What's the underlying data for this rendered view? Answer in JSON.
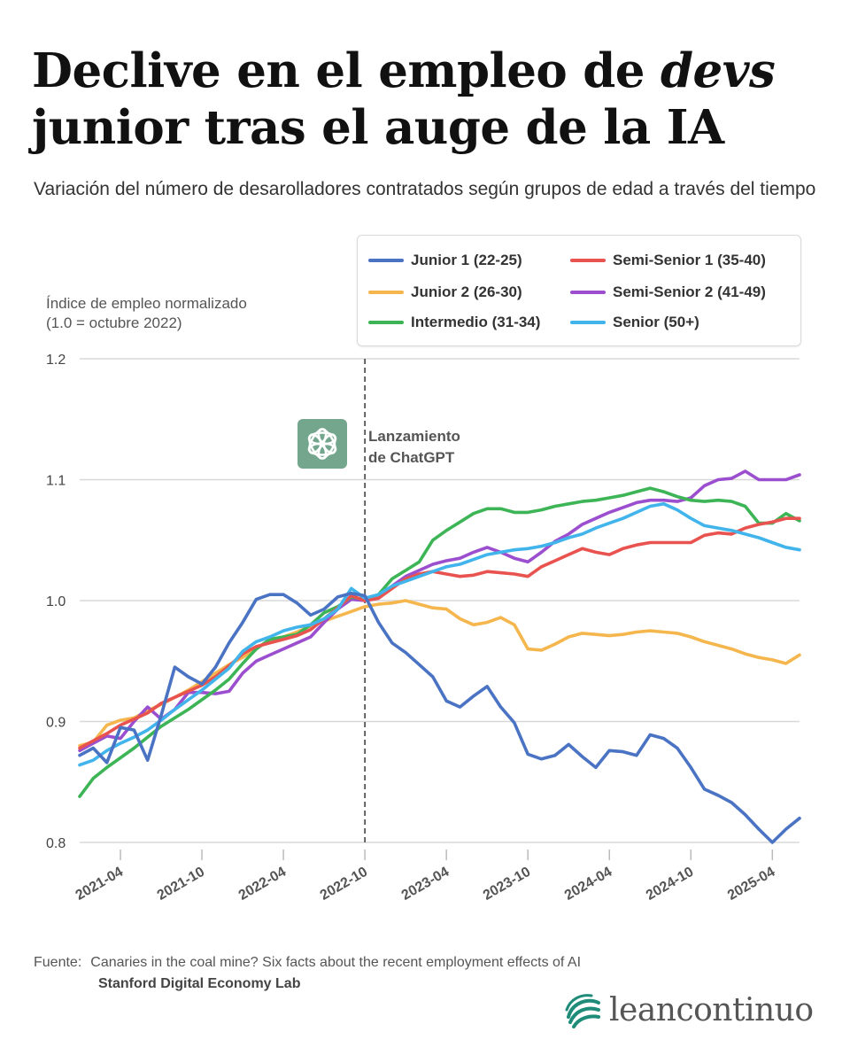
{
  "header": {
    "title_part1": "Declive en el empleo de ",
    "title_italic": "devs",
    "title_part2": " junior tras el auge de la IA",
    "subtitle": "Variación del número de desarolladores contratados según grupos de edad a través del tiempo"
  },
  "chart_data": {
    "type": "line",
    "ylabel_line1": "Índice de empleo normalizado",
    "ylabel_line2": "(1.0 = octubre 2022)",
    "ylim": [
      0.8,
      1.2
    ],
    "yticks": [
      "1.2",
      "1.1",
      "1.0",
      "0.9",
      "0.8"
    ],
    "xticks": [
      "2021-04",
      "2021-10",
      "2022-04",
      "2022-10",
      "2023-04",
      "2023-10",
      "2024-04",
      "2024-10",
      "2025-04"
    ],
    "xrange": [
      "2021-01",
      "2025-06"
    ],
    "grid": true,
    "legend_position": "top-right",
    "annotation": {
      "x": "2022-10",
      "line1": "Lanzamiento",
      "line2": "de ChatGPT",
      "icon": "chatgpt-logo-icon"
    },
    "series": [
      {
        "name": "Junior 1 (22-25)",
        "color": "#4a73c4",
        "x": [
          "2021-01",
          "2021-02",
          "2021-03",
          "2021-04",
          "2021-05",
          "2021-06",
          "2021-07",
          "2021-08",
          "2021-09",
          "2021-10",
          "2021-11",
          "2021-12",
          "2022-01",
          "2022-02",
          "2022-03",
          "2022-04",
          "2022-05",
          "2022-06",
          "2022-07",
          "2022-08",
          "2022-09",
          "2022-10",
          "2022-11",
          "2022-12",
          "2023-01",
          "2023-02",
          "2023-03",
          "2023-04",
          "2023-05",
          "2023-06",
          "2023-07",
          "2023-08",
          "2023-09",
          "2023-10",
          "2023-11",
          "2023-12",
          "2024-01",
          "2024-02",
          "2024-03",
          "2024-04",
          "2024-05",
          "2024-06",
          "2024-07",
          "2024-08",
          "2024-09",
          "2024-10",
          "2024-11",
          "2024-12",
          "2025-01",
          "2025-02",
          "2025-03",
          "2025-04",
          "2025-05",
          "2025-06"
        ],
        "y": [
          0.872,
          0.878,
          0.866,
          0.895,
          0.893,
          0.868,
          0.905,
          0.945,
          0.937,
          0.931,
          0.945,
          0.965,
          0.982,
          1.001,
          1.005,
          1.005,
          0.998,
          0.988,
          0.993,
          1.003,
          1.006,
          1.004,
          0.982,
          0.965,
          0.957,
          0.947,
          0.937,
          0.917,
          0.912,
          0.921,
          0.929,
          0.912,
          0.899,
          0.873,
          0.869,
          0.872,
          0.881,
          0.871,
          0.862,
          0.876,
          0.875,
          0.872,
          0.889,
          0.886,
          0.878,
          0.862,
          0.844,
          0.839,
          0.833,
          0.823,
          0.811,
          0.8,
          0.811,
          0.82
        ]
      },
      {
        "name": "Junior 2 (26-30)",
        "color": "#f5b64e",
        "x": [
          "2021-01",
          "2021-02",
          "2021-03",
          "2021-04",
          "2021-05",
          "2021-06",
          "2021-07",
          "2021-08",
          "2021-09",
          "2021-10",
          "2021-11",
          "2021-12",
          "2022-01",
          "2022-02",
          "2022-03",
          "2022-04",
          "2022-05",
          "2022-06",
          "2022-07",
          "2022-08",
          "2022-09",
          "2022-10",
          "2022-11",
          "2022-12",
          "2023-01",
          "2023-02",
          "2023-03",
          "2023-04",
          "2023-05",
          "2023-06",
          "2023-07",
          "2023-08",
          "2023-09",
          "2023-10",
          "2023-11",
          "2023-12",
          "2024-01",
          "2024-02",
          "2024-03",
          "2024-04",
          "2024-05",
          "2024-06",
          "2024-07",
          "2024-08",
          "2024-09",
          "2024-10",
          "2024-11",
          "2024-12",
          "2025-01",
          "2025-02",
          "2025-03",
          "2025-04",
          "2025-05",
          "2025-06"
        ],
        "y": [
          0.88,
          0.883,
          0.897,
          0.901,
          0.903,
          0.909,
          0.914,
          0.92,
          0.926,
          0.933,
          0.94,
          0.947,
          0.953,
          0.961,
          0.966,
          0.97,
          0.974,
          0.979,
          0.983,
          0.987,
          0.991,
          0.995,
          0.997,
          0.998,
          1.0,
          0.997,
          0.994,
          0.993,
          0.985,
          0.98,
          0.982,
          0.986,
          0.98,
          0.96,
          0.959,
          0.964,
          0.97,
          0.973,
          0.972,
          0.971,
          0.972,
          0.974,
          0.975,
          0.974,
          0.973,
          0.97,
          0.966,
          0.963,
          0.96,
          0.956,
          0.953,
          0.951,
          0.948,
          0.955
        ]
      },
      {
        "name": "Intermedio (31-34)",
        "color": "#3db556",
        "x": [
          "2021-01",
          "2021-02",
          "2021-03",
          "2021-04",
          "2021-05",
          "2021-06",
          "2021-07",
          "2021-08",
          "2021-09",
          "2021-10",
          "2021-11",
          "2021-12",
          "2022-01",
          "2022-02",
          "2022-03",
          "2022-04",
          "2022-05",
          "2022-06",
          "2022-07",
          "2022-08",
          "2022-09",
          "2022-10",
          "2022-11",
          "2022-12",
          "2023-01",
          "2023-02",
          "2023-03",
          "2023-04",
          "2023-05",
          "2023-06",
          "2023-07",
          "2023-08",
          "2023-09",
          "2023-10",
          "2023-11",
          "2023-12",
          "2024-01",
          "2024-02",
          "2024-03",
          "2024-04",
          "2024-05",
          "2024-06",
          "2024-07",
          "2024-08",
          "2024-09",
          "2024-10",
          "2024-11",
          "2024-12",
          "2025-01",
          "2025-02",
          "2025-03",
          "2025-04",
          "2025-05",
          "2025-06"
        ],
        "y": [
          0.838,
          0.853,
          0.862,
          0.87,
          0.878,
          0.887,
          0.896,
          0.903,
          0.91,
          0.918,
          0.926,
          0.935,
          0.948,
          0.96,
          0.968,
          0.97,
          0.972,
          0.98,
          0.99,
          0.995,
          1.003,
          1.001,
          1.005,
          1.018,
          1.025,
          1.032,
          1.05,
          1.058,
          1.065,
          1.072,
          1.076,
          1.076,
          1.073,
          1.073,
          1.075,
          1.078,
          1.08,
          1.082,
          1.083,
          1.085,
          1.087,
          1.09,
          1.093,
          1.09,
          1.086,
          1.083,
          1.082,
          1.083,
          1.082,
          1.078,
          1.064,
          1.064,
          1.072,
          1.066
        ]
      },
      {
        "name": "Semi-Senior 1 (35-40)",
        "color": "#e8534f",
        "x": [
          "2021-01",
          "2021-02",
          "2021-03",
          "2021-04",
          "2021-05",
          "2021-06",
          "2021-07",
          "2021-08",
          "2021-09",
          "2021-10",
          "2021-11",
          "2021-12",
          "2022-01",
          "2022-02",
          "2022-03",
          "2022-04",
          "2022-05",
          "2022-06",
          "2022-07",
          "2022-08",
          "2022-09",
          "2022-10",
          "2022-11",
          "2022-12",
          "2023-01",
          "2023-02",
          "2023-03",
          "2023-04",
          "2023-05",
          "2023-06",
          "2023-07",
          "2023-08",
          "2023-09",
          "2023-10",
          "2023-11",
          "2023-12",
          "2024-01",
          "2024-02",
          "2024-03",
          "2024-04",
          "2024-05",
          "2024-06",
          "2024-07",
          "2024-08",
          "2024-09",
          "2024-10",
          "2024-11",
          "2024-12",
          "2025-01",
          "2025-02",
          "2025-03",
          "2025-04",
          "2025-05",
          "2025-06"
        ],
        "y": [
          0.878,
          0.884,
          0.89,
          0.897,
          0.902,
          0.907,
          0.915,
          0.92,
          0.925,
          0.93,
          0.937,
          0.946,
          0.956,
          0.962,
          0.965,
          0.968,
          0.971,
          0.976,
          0.985,
          0.994,
          1.004,
          1.0,
          1.002,
          1.01,
          1.018,
          1.022,
          1.024,
          1.022,
          1.02,
          1.021,
          1.024,
          1.023,
          1.022,
          1.02,
          1.028,
          1.033,
          1.038,
          1.043,
          1.04,
          1.038,
          1.043,
          1.046,
          1.048,
          1.048,
          1.048,
          1.048,
          1.054,
          1.056,
          1.055,
          1.06,
          1.063,
          1.065,
          1.068,
          1.068
        ]
      },
      {
        "name": "Semi-Senior 2 (41-49)",
        "color": "#9b4fcf",
        "x": [
          "2021-01",
          "2021-02",
          "2021-03",
          "2021-04",
          "2021-05",
          "2021-06",
          "2021-07",
          "2021-08",
          "2021-09",
          "2021-10",
          "2021-11",
          "2021-12",
          "2022-01",
          "2022-02",
          "2022-03",
          "2022-04",
          "2022-05",
          "2022-06",
          "2022-07",
          "2022-08",
          "2022-09",
          "2022-10",
          "2022-11",
          "2022-12",
          "2023-01",
          "2023-02",
          "2023-03",
          "2023-04",
          "2023-05",
          "2023-06",
          "2023-07",
          "2023-08",
          "2023-09",
          "2023-10",
          "2023-11",
          "2023-12",
          "2024-01",
          "2024-02",
          "2024-03",
          "2024-04",
          "2024-05",
          "2024-06",
          "2024-07",
          "2024-08",
          "2024-09",
          "2024-10",
          "2024-11",
          "2024-12",
          "2025-01",
          "2025-02",
          "2025-03",
          "2025-04",
          "2025-05",
          "2025-06"
        ],
        "y": [
          0.876,
          0.882,
          0.888,
          0.886,
          0.9,
          0.912,
          0.902,
          0.91,
          0.924,
          0.924,
          0.923,
          0.925,
          0.94,
          0.95,
          0.955,
          0.96,
          0.965,
          0.97,
          0.982,
          0.993,
          1.001,
          1.0,
          1.002,
          1.012,
          1.02,
          1.025,
          1.03,
          1.033,
          1.035,
          1.04,
          1.044,
          1.04,
          1.035,
          1.032,
          1.04,
          1.049,
          1.055,
          1.063,
          1.068,
          1.073,
          1.077,
          1.081,
          1.083,
          1.083,
          1.082,
          1.085,
          1.095,
          1.1,
          1.101,
          1.107,
          1.1,
          1.1,
          1.1,
          1.104
        ]
      },
      {
        "name": "Senior (50+)",
        "color": "#42b4ec",
        "x": [
          "2021-01",
          "2021-02",
          "2021-03",
          "2021-04",
          "2021-05",
          "2021-06",
          "2021-07",
          "2021-08",
          "2021-09",
          "2021-10",
          "2021-11",
          "2021-12",
          "2022-01",
          "2022-02",
          "2022-03",
          "2022-04",
          "2022-05",
          "2022-06",
          "2022-07",
          "2022-08",
          "2022-09",
          "2022-10",
          "2022-11",
          "2022-12",
          "2023-01",
          "2023-02",
          "2023-03",
          "2023-04",
          "2023-05",
          "2023-06",
          "2023-07",
          "2023-08",
          "2023-09",
          "2023-10",
          "2023-11",
          "2023-12",
          "2024-01",
          "2024-02",
          "2024-03",
          "2024-04",
          "2024-05",
          "2024-06",
          "2024-07",
          "2024-08",
          "2024-09",
          "2024-10",
          "2024-11",
          "2024-12",
          "2025-01",
          "2025-02",
          "2025-03",
          "2025-04",
          "2025-05",
          "2025-06"
        ],
        "y": [
          0.864,
          0.868,
          0.876,
          0.882,
          0.887,
          0.893,
          0.901,
          0.91,
          0.918,
          0.926,
          0.935,
          0.944,
          0.958,
          0.966,
          0.97,
          0.975,
          0.978,
          0.98,
          0.985,
          0.993,
          1.01,
          1.002,
          1.005,
          1.012,
          1.016,
          1.02,
          1.024,
          1.028,
          1.03,
          1.034,
          1.038,
          1.04,
          1.042,
          1.043,
          1.045,
          1.048,
          1.052,
          1.055,
          1.06,
          1.064,
          1.068,
          1.073,
          1.078,
          1.08,
          1.075,
          1.068,
          1.062,
          1.06,
          1.058,
          1.055,
          1.052,
          1.048,
          1.044,
          1.042
        ]
      }
    ]
  },
  "source": {
    "label": "Fuente:",
    "text": "Canaries in the coal mine? Six facts about the recent employment effects of AI",
    "org": "Stanford Digital Economy Lab"
  },
  "brand": {
    "name": "leancontinuo",
    "icon": "leancontinuo-logo-icon",
    "color": "#1f8c7a"
  }
}
